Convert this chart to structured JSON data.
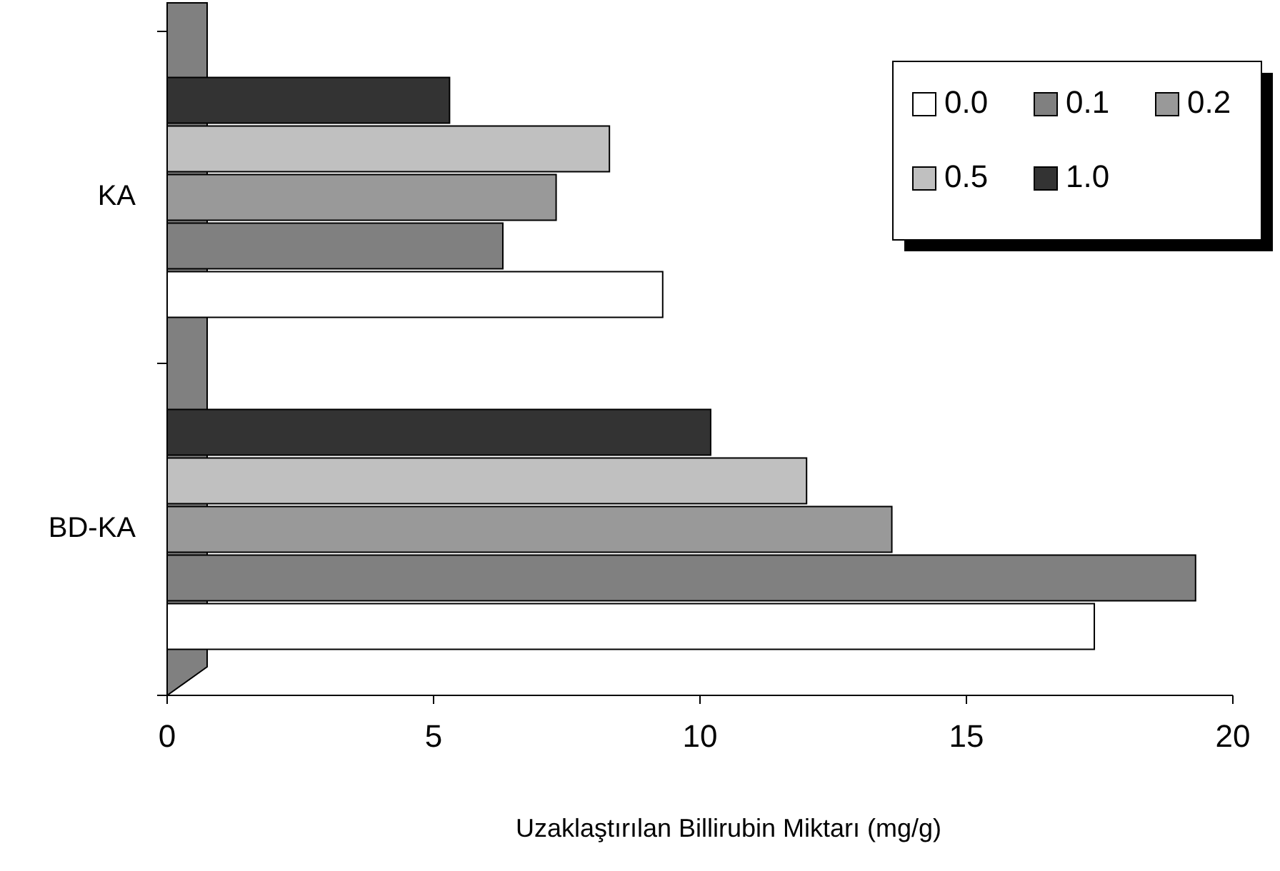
{
  "chart_data": {
    "type": "bar",
    "orientation": "horizontal",
    "xlabel": "Uzaklaştırılan Billirubin Miktarı (mg/g)",
    "categories": [
      "KA",
      "BD-KA"
    ],
    "series": [
      {
        "name": "0.0",
        "color": "#ffffff",
        "values": [
          9.3,
          17.4
        ]
      },
      {
        "name": "0.1",
        "color": "#808080",
        "values": [
          6.3,
          19.3
        ]
      },
      {
        "name": "0.2",
        "color": "#999999",
        "values": [
          7.3,
          13.6
        ]
      },
      {
        "name": "0.5",
        "color": "#c0c0c0",
        "values": [
          8.3,
          12.0
        ]
      },
      {
        "name": "1.0",
        "color": "#333333",
        "values": [
          5.3,
          10.2
        ]
      }
    ],
    "xlim": [
      0,
      20
    ],
    "xticks": [
      0,
      5,
      10,
      15,
      20
    ],
    "legend": "top right",
    "grid": false
  }
}
